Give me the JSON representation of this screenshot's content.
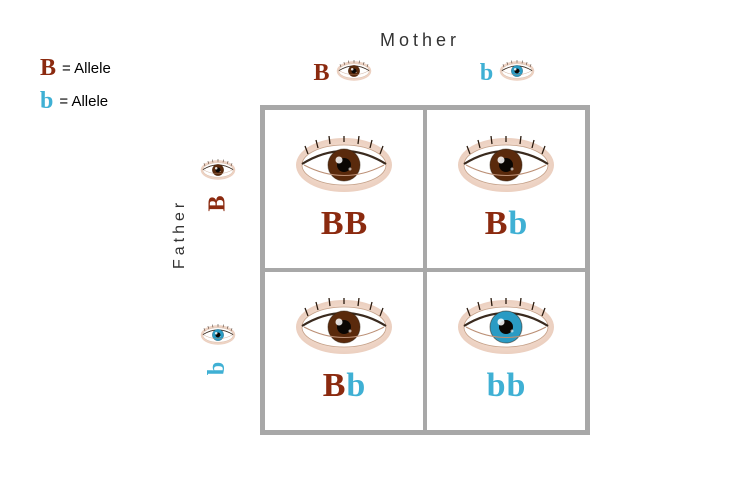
{
  "legend": {
    "dominant_symbol": "B",
    "dominant_label": "= Allele",
    "recessive_symbol": "b",
    "recessive_label": "= Allele"
  },
  "parents": {
    "mother_label": "Mother",
    "father_label": "Father"
  },
  "colors": {
    "dominant": "#8b2a0f",
    "recessive": "#3fb0d4",
    "brown_iris": "#5a2a0c",
    "blue_iris": "#2a9bc4",
    "legend_text": "#333333",
    "grid_border": "#a8a8a8"
  },
  "column_alleles": [
    {
      "symbol": "B",
      "color_key": "dominant",
      "iris_key": "brown_iris"
    },
    {
      "symbol": "b",
      "color_key": "recessive",
      "iris_key": "blue_iris"
    }
  ],
  "row_alleles": [
    {
      "symbol": "B",
      "color_key": "dominant",
      "iris_key": "brown_iris"
    },
    {
      "symbol": "b",
      "color_key": "recessive",
      "iris_key": "blue_iris"
    }
  ],
  "cells": [
    {
      "letters": [
        "B",
        "B"
      ],
      "letter_color_keys": [
        "dominant",
        "dominant"
      ],
      "iris_key": "brown_iris"
    },
    {
      "letters": [
        "B",
        "b"
      ],
      "letter_color_keys": [
        "dominant",
        "recessive"
      ],
      "iris_key": "brown_iris"
    },
    {
      "letters": [
        "B",
        "b"
      ],
      "letter_color_keys": [
        "dominant",
        "recessive"
      ],
      "iris_key": "brown_iris"
    },
    {
      "letters": [
        "b",
        "b"
      ],
      "letter_color_keys": [
        "recessive",
        "recessive"
      ],
      "iris_key": "blue_iris"
    }
  ]
}
